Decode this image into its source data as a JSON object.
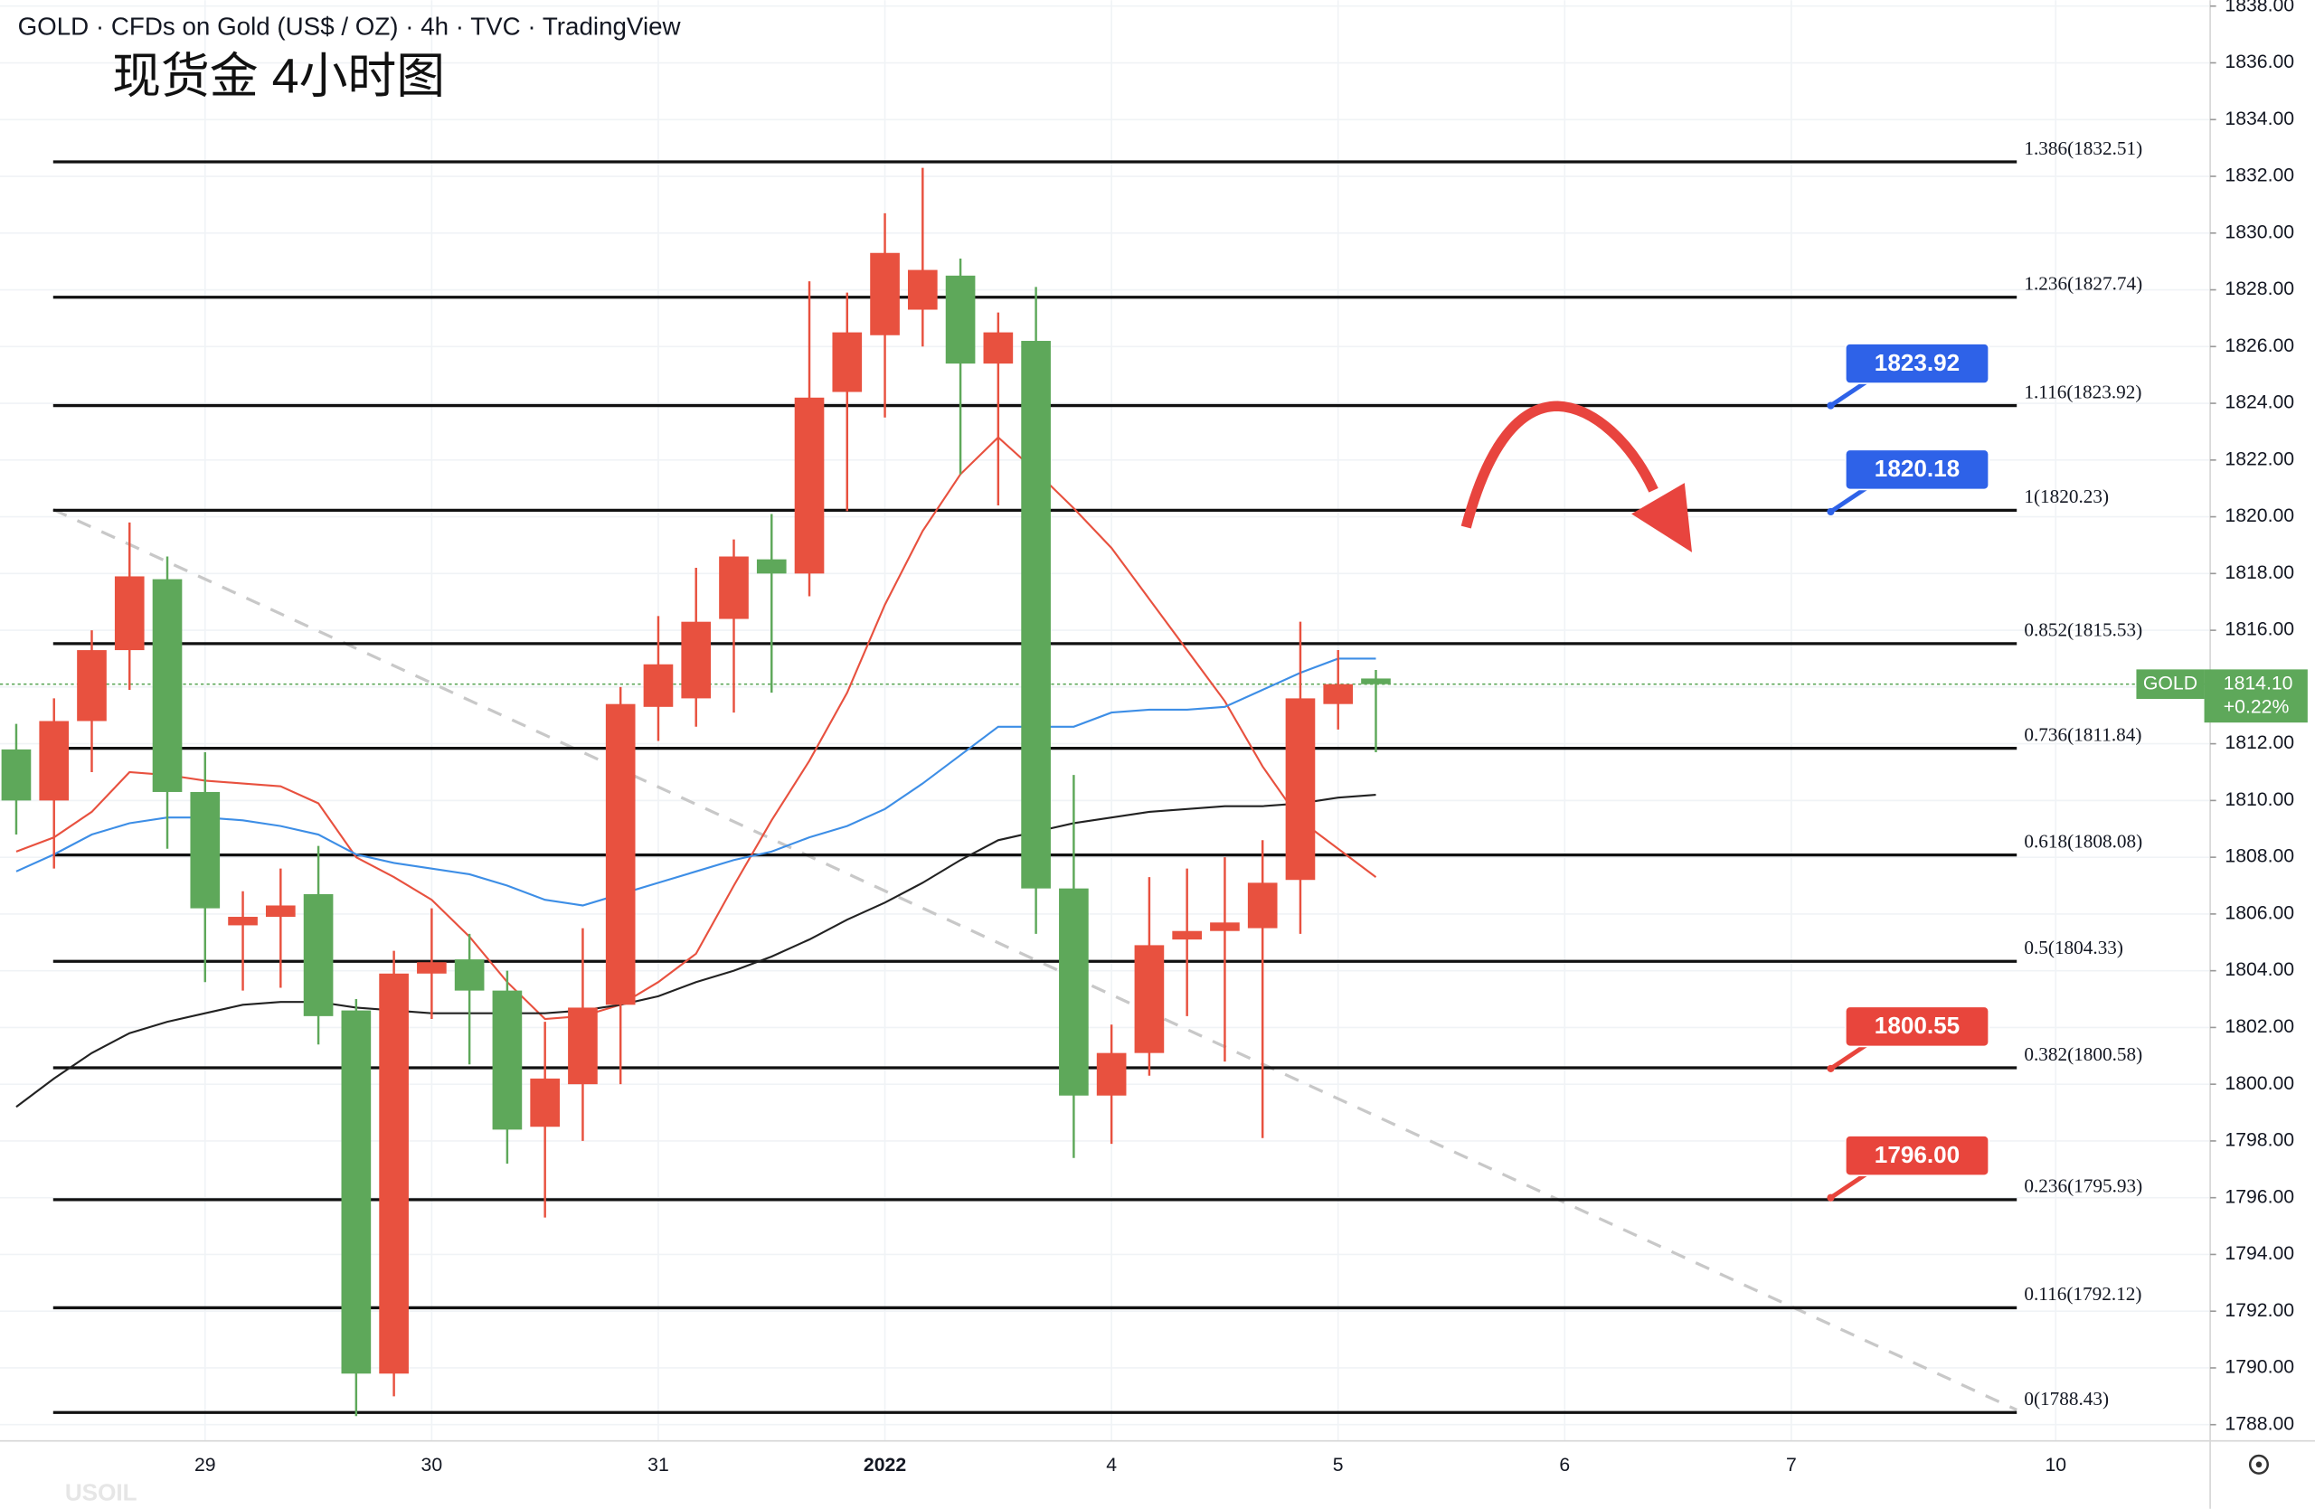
{
  "chart_data": {
    "type": "candlestick",
    "title": "GOLD · CFDs on Gold (US$ / OZ) · 4h · TVC · TradingView",
    "subtitle": "现货金 4小时图",
    "watermark": "USOIL",
    "up_color": "#e8513f",
    "down_color": "#5ea85a",
    "xlim": [
      -0.43,
      58.09
    ],
    "xticks": [
      {
        "value": 5,
        "label": "29"
      },
      {
        "value": 11,
        "label": "30"
      },
      {
        "value": 17,
        "label": "31"
      },
      {
        "value": 23,
        "label": "2022"
      },
      {
        "value": 29,
        "label": "4"
      },
      {
        "value": 35,
        "label": "5"
      },
      {
        "value": 41,
        "label": "6"
      },
      {
        "value": 47,
        "label": "7"
      },
      {
        "value": 54,
        "label": "10"
      }
    ],
    "ylim": [
      1788,
      1838
    ],
    "yticks": [
      {
        "value": 1788,
        "label": "1788.00"
      },
      {
        "value": 1790,
        "label": "1790.00"
      },
      {
        "value": 1792,
        "label": "1792.00"
      },
      {
        "value": 1794,
        "label": "1794.00"
      },
      {
        "value": 1796,
        "label": "1796.00"
      },
      {
        "value": 1798,
        "label": "1798.00"
      },
      {
        "value": 1800,
        "label": "1800.00"
      },
      {
        "value": 1802,
        "label": "1802.00"
      },
      {
        "value": 1804,
        "label": "1804.00"
      },
      {
        "value": 1806,
        "label": "1806.00"
      },
      {
        "value": 1808,
        "label": "1808.00"
      },
      {
        "value": 1810,
        "label": "1810.00"
      },
      {
        "value": 1812,
        "label": "1812.00"
      },
      {
        "value": 1814,
        "label": "1814.00"
      },
      {
        "value": 1816,
        "label": "1816.00"
      },
      {
        "value": 1818,
        "label": "1818.00"
      },
      {
        "value": 1820,
        "label": "1820.00"
      },
      {
        "value": 1822,
        "label": "1822.00"
      },
      {
        "value": 1824,
        "label": "1824.00"
      },
      {
        "value": 1826,
        "label": "1826.00"
      },
      {
        "value": 1828,
        "label": "1828.00"
      },
      {
        "value": 1830,
        "label": "1830.00"
      },
      {
        "value": 1832,
        "label": "1832.00"
      },
      {
        "value": 1834,
        "label": "1834.00"
      },
      {
        "value": 1836,
        "label": "1836.00"
      },
      {
        "value": 1838,
        "label": "1838.00"
      }
    ],
    "grid": true,
    "candles": {
      "open": [
        1811.8,
        1810.0,
        1812.8,
        1815.3,
        1817.8,
        1810.3,
        1805.6,
        1805.9,
        1806.7,
        1802.6,
        1789.8,
        1803.9,
        1804.4,
        1803.3,
        1798.5,
        1800.0,
        1802.8,
        1813.3,
        1813.6,
        1816.4,
        1818.5,
        1818.0,
        1824.4,
        1826.4,
        1827.3,
        1828.5,
        1825.4,
        1826.2,
        1806.9,
        1799.6,
        1801.1,
        1805.1,
        1805.4,
        1805.5,
        1807.2,
        1813.4,
        1814.3
      ],
      "high": [
        1812.7,
        1813.6,
        1816.0,
        1819.8,
        1818.6,
        1811.7,
        1806.8,
        1807.6,
        1808.4,
        1803.0,
        1804.7,
        1806.2,
        1805.3,
        1804.0,
        1802.2,
        1805.5,
        1814.0,
        1816.5,
        1818.2,
        1819.2,
        1820.1,
        1828.3,
        1827.9,
        1830.7,
        1832.3,
        1829.1,
        1827.2,
        1828.1,
        1810.9,
        1802.1,
        1807.3,
        1807.6,
        1808.0,
        1808.6,
        1816.3,
        1815.3,
        1814.6
      ],
      "low": [
        1808.8,
        1807.6,
        1811.0,
        1813.9,
        1808.3,
        1803.6,
        1803.3,
        1803.4,
        1801.4,
        1788.3,
        1789.0,
        1802.3,
        1800.7,
        1797.2,
        1795.3,
        1798.0,
        1800.0,
        1812.1,
        1812.6,
        1813.1,
        1813.8,
        1817.2,
        1820.2,
        1823.5,
        1826.0,
        1821.5,
        1820.4,
        1805.3,
        1797.4,
        1797.9,
        1800.3,
        1802.4,
        1800.8,
        1798.1,
        1805.3,
        1812.5,
        1811.7
      ],
      "close": [
        1810.0,
        1812.8,
        1815.3,
        1817.9,
        1810.3,
        1806.2,
        1805.9,
        1806.3,
        1802.4,
        1789.8,
        1803.9,
        1804.3,
        1803.3,
        1798.4,
        1800.2,
        1802.7,
        1813.4,
        1814.8,
        1816.3,
        1818.6,
        1818.0,
        1824.2,
        1826.5,
        1829.3,
        1828.7,
        1825.4,
        1826.5,
        1806.9,
        1799.6,
        1801.1,
        1804.9,
        1805.4,
        1805.7,
        1807.1,
        1813.6,
        1814.1,
        1814.1
      ]
    },
    "series": [
      {
        "color": "#e8513f",
        "values": [
          1808.2,
          1808.7,
          1809.6,
          1811.0,
          1810.9,
          1810.7,
          1810.6,
          1810.5,
          1809.9,
          1808.0,
          1807.3,
          1806.5,
          1805.2,
          1803.6,
          1802.3,
          1802.4,
          1802.8,
          1803.6,
          1804.6,
          1807.0,
          1809.3,
          1811.4,
          1813.8,
          1816.9,
          1819.5,
          1821.5,
          1822.8,
          1821.6,
          1820.3,
          1818.9,
          1817.1,
          1815.3,
          1813.5,
          1811.2,
          1809.3,
          1808.3,
          1807.3
        ]
      },
      {
        "color": "#3d8ee6",
        "values": [
          1807.5,
          1808.1,
          1808.8,
          1809.2,
          1809.4,
          1809.4,
          1809.3,
          1809.1,
          1808.8,
          1808.1,
          1807.8,
          1807.6,
          1807.4,
          1807.0,
          1806.5,
          1806.3,
          1806.7,
          1807.1,
          1807.5,
          1807.9,
          1808.2,
          1808.7,
          1809.1,
          1809.7,
          1810.6,
          1811.6,
          1812.6,
          1812.6,
          1812.6,
          1813.1,
          1813.2,
          1813.2,
          1813.3,
          1813.9,
          1814.5,
          1815.0,
          1815.0
        ]
      },
      {
        "color": "#222222",
        "values": [
          1799.2,
          1800.2,
          1801.1,
          1801.8,
          1802.2,
          1802.5,
          1802.8,
          1802.9,
          1802.9,
          1802.7,
          1802.6,
          1802.5,
          1802.5,
          1802.5,
          1802.5,
          1802.6,
          1802.8,
          1803.1,
          1803.6,
          1804.0,
          1804.5,
          1805.1,
          1805.8,
          1806.4,
          1807.1,
          1807.9,
          1808.6,
          1808.9,
          1809.2,
          1809.4,
          1809.6,
          1809.7,
          1809.8,
          1809.8,
          1809.9,
          1810.1,
          1810.2
        ]
      }
    ],
    "levels": [
      {
        "value": 1832.51,
        "label": "1.386(1832.51)"
      },
      {
        "value": 1827.74,
        "label": "1.236(1827.74)"
      },
      {
        "value": 1823.92,
        "label": "1.116(1823.92)"
      },
      {
        "value": 1820.23,
        "label": "1(1820.23)"
      },
      {
        "value": 1815.53,
        "label": "0.852(1815.53)"
      },
      {
        "value": 1811.84,
        "label": "0.736(1811.84)"
      },
      {
        "value": 1808.08,
        "label": "0.618(1808.08)"
      },
      {
        "value": 1804.33,
        "label": "0.5(1804.33)"
      },
      {
        "value": 1800.58,
        "label": "0.382(1800.58)"
      },
      {
        "value": 1795.93,
        "label": "0.236(1795.93)"
      },
      {
        "value": 1792.12,
        "label": "0.116(1792.12)"
      },
      {
        "value": 1788.43,
        "label": "0(1788.43)"
      }
    ],
    "callouts": [
      {
        "value": 1823.92,
        "label": "1823.92",
        "color": "#2e62e8"
      },
      {
        "value": 1820.18,
        "label": "1820.18",
        "color": "#2e62e8"
      },
      {
        "value": 1800.55,
        "label": "1800.55",
        "color": "#e8453c"
      },
      {
        "value": 1796,
        "label": "1796.00",
        "color": "#e8453c"
      }
    ],
    "last_price": {
      "symbol": "GOLD",
      "value": 1814.1,
      "label": "1814.10",
      "change": {
        "value": 0.22,
        "label": "+0.22%"
      },
      "color": "#5ea85a"
    }
  }
}
